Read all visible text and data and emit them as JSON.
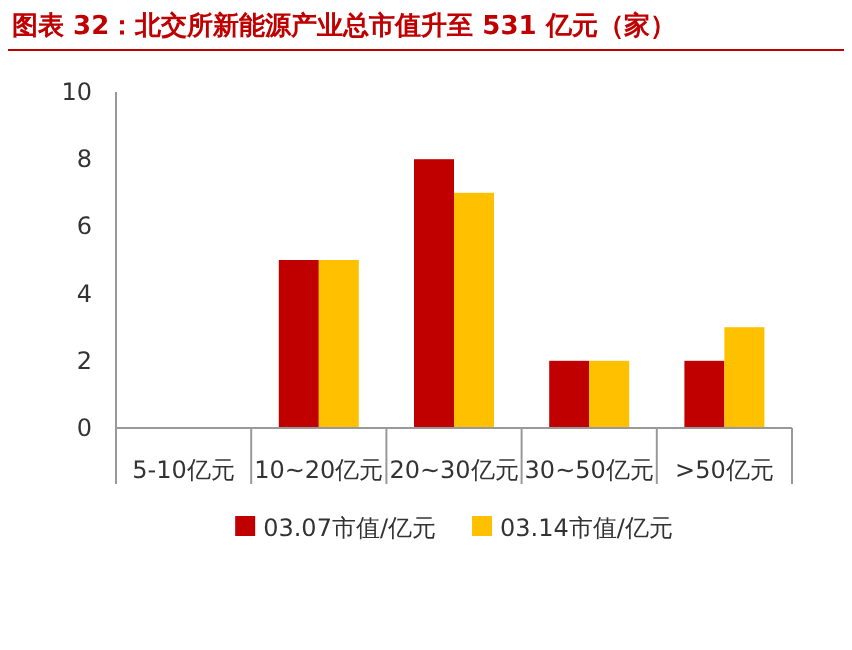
{
  "chart_data": {
    "type": "bar",
    "title": "图表 32：北交所新能源产业总市值升至 531 亿元（家）",
    "categories": [
      "5-10亿元",
      "10~20亿元",
      "20~30亿元",
      "30~50亿元",
      ">50亿元"
    ],
    "series": [
      {
        "name": "03.07市值/亿元",
        "color": "#c00000",
        "values": [
          0,
          5,
          8,
          2,
          2
        ]
      },
      {
        "name": "03.14市值/亿元",
        "color": "#ffc000",
        "values": [
          0,
          5,
          7,
          2,
          3
        ]
      }
    ],
    "ylim": [
      0,
      10
    ],
    "yticks": [
      0,
      2,
      4,
      6,
      8,
      10
    ],
    "legend": "bottom"
  }
}
